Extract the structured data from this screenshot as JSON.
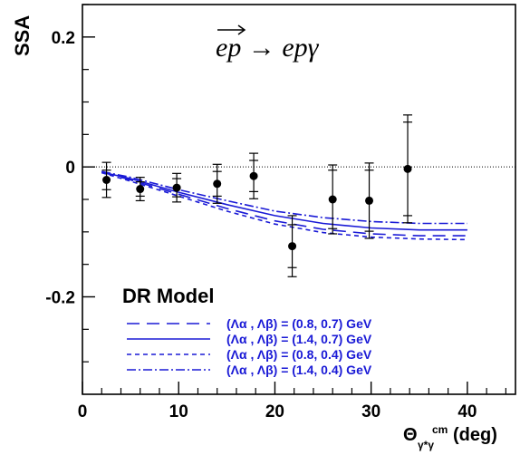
{
  "chart_data": {
    "type": "line",
    "title": "",
    "ylabel": "SSA",
    "xlabel": "(deg)",
    "xlabel_symbol": "Θ",
    "xlabel_sup": "cm",
    "xlabel_sub": "γ*γ",
    "xlim": [
      0,
      45
    ],
    "ylim": [
      -0.35,
      0.25
    ],
    "x_ticks": [
      0,
      10,
      20,
      30,
      40
    ],
    "x_tick_labels": [
      "0",
      "10",
      "20",
      "30",
      "40"
    ],
    "y_ticks": [
      0.2,
      0,
      -0.2
    ],
    "y_tick_labels": [
      "0.2",
      "0",
      "-0.2"
    ],
    "reaction_label": "ep → epγ",
    "model_label": "DR Model",
    "series": [
      {
        "name": "(Λα , Λβ) = (0.8, 0.7) GeV",
        "style": "long-dash",
        "x": [
          2,
          5,
          10,
          15,
          20,
          25,
          30,
          35,
          40
        ],
        "y": [
          -0.008,
          -0.02,
          -0.042,
          -0.064,
          -0.083,
          -0.096,
          -0.103,
          -0.106,
          -0.106
        ]
      },
      {
        "name": "(Λα , Λβ) = (1.4, 0.7) GeV",
        "style": "solid",
        "x": [
          2,
          5,
          10,
          15,
          20,
          25,
          30,
          35,
          40
        ],
        "y": [
          -0.008,
          -0.018,
          -0.039,
          -0.058,
          -0.075,
          -0.087,
          -0.094,
          -0.097,
          -0.097
        ]
      },
      {
        "name": "(Λα , Λβ) = (0.8, 0.4) GeV",
        "style": "short-dash",
        "x": [
          2,
          5,
          10,
          15,
          20,
          25,
          30,
          35,
          40
        ],
        "y": [
          -0.009,
          -0.022,
          -0.045,
          -0.068,
          -0.088,
          -0.101,
          -0.108,
          -0.111,
          -0.112
        ]
      },
      {
        "name": "(Λα , Λβ) = (1.4, 0.4) GeV",
        "style": "dash-dot",
        "x": [
          2,
          5,
          10,
          15,
          20,
          25,
          30,
          35,
          40
        ],
        "y": [
          -0.007,
          -0.016,
          -0.035,
          -0.052,
          -0.068,
          -0.078,
          -0.084,
          -0.087,
          -0.087
        ]
      }
    ],
    "data_points": [
      {
        "x": 2.5,
        "y": -0.02,
        "err_stat": 0.015,
        "err_tot": 0.027
      },
      {
        "x": 6.0,
        "y": -0.034,
        "err_stat": 0.011,
        "err_tot": 0.018
      },
      {
        "x": 9.8,
        "y": -0.032,
        "err_stat": 0.014,
        "err_tot": 0.022
      },
      {
        "x": 14.0,
        "y": -0.026,
        "err_stat": 0.019,
        "err_tot": 0.03
      },
      {
        "x": 17.8,
        "y": -0.014,
        "err_stat": 0.024,
        "err_tot": 0.035
      },
      {
        "x": 21.8,
        "y": -0.122,
        "err_stat": 0.033,
        "err_tot": 0.047
      },
      {
        "x": 26.0,
        "y": -0.05,
        "err_stat": 0.045,
        "err_tot": 0.053
      },
      {
        "x": 29.8,
        "y": -0.052,
        "err_stat": 0.047,
        "err_tot": 0.058
      },
      {
        "x": 33.8,
        "y": -0.003,
        "err_stat": 0.072,
        "err_tot": 0.083
      }
    ],
    "zero_line": true,
    "grid": false,
    "legend_position": "bottom-left"
  },
  "colors": {
    "model_curves": "#1a1ad6",
    "data": "#000000",
    "axes": "#000000"
  }
}
